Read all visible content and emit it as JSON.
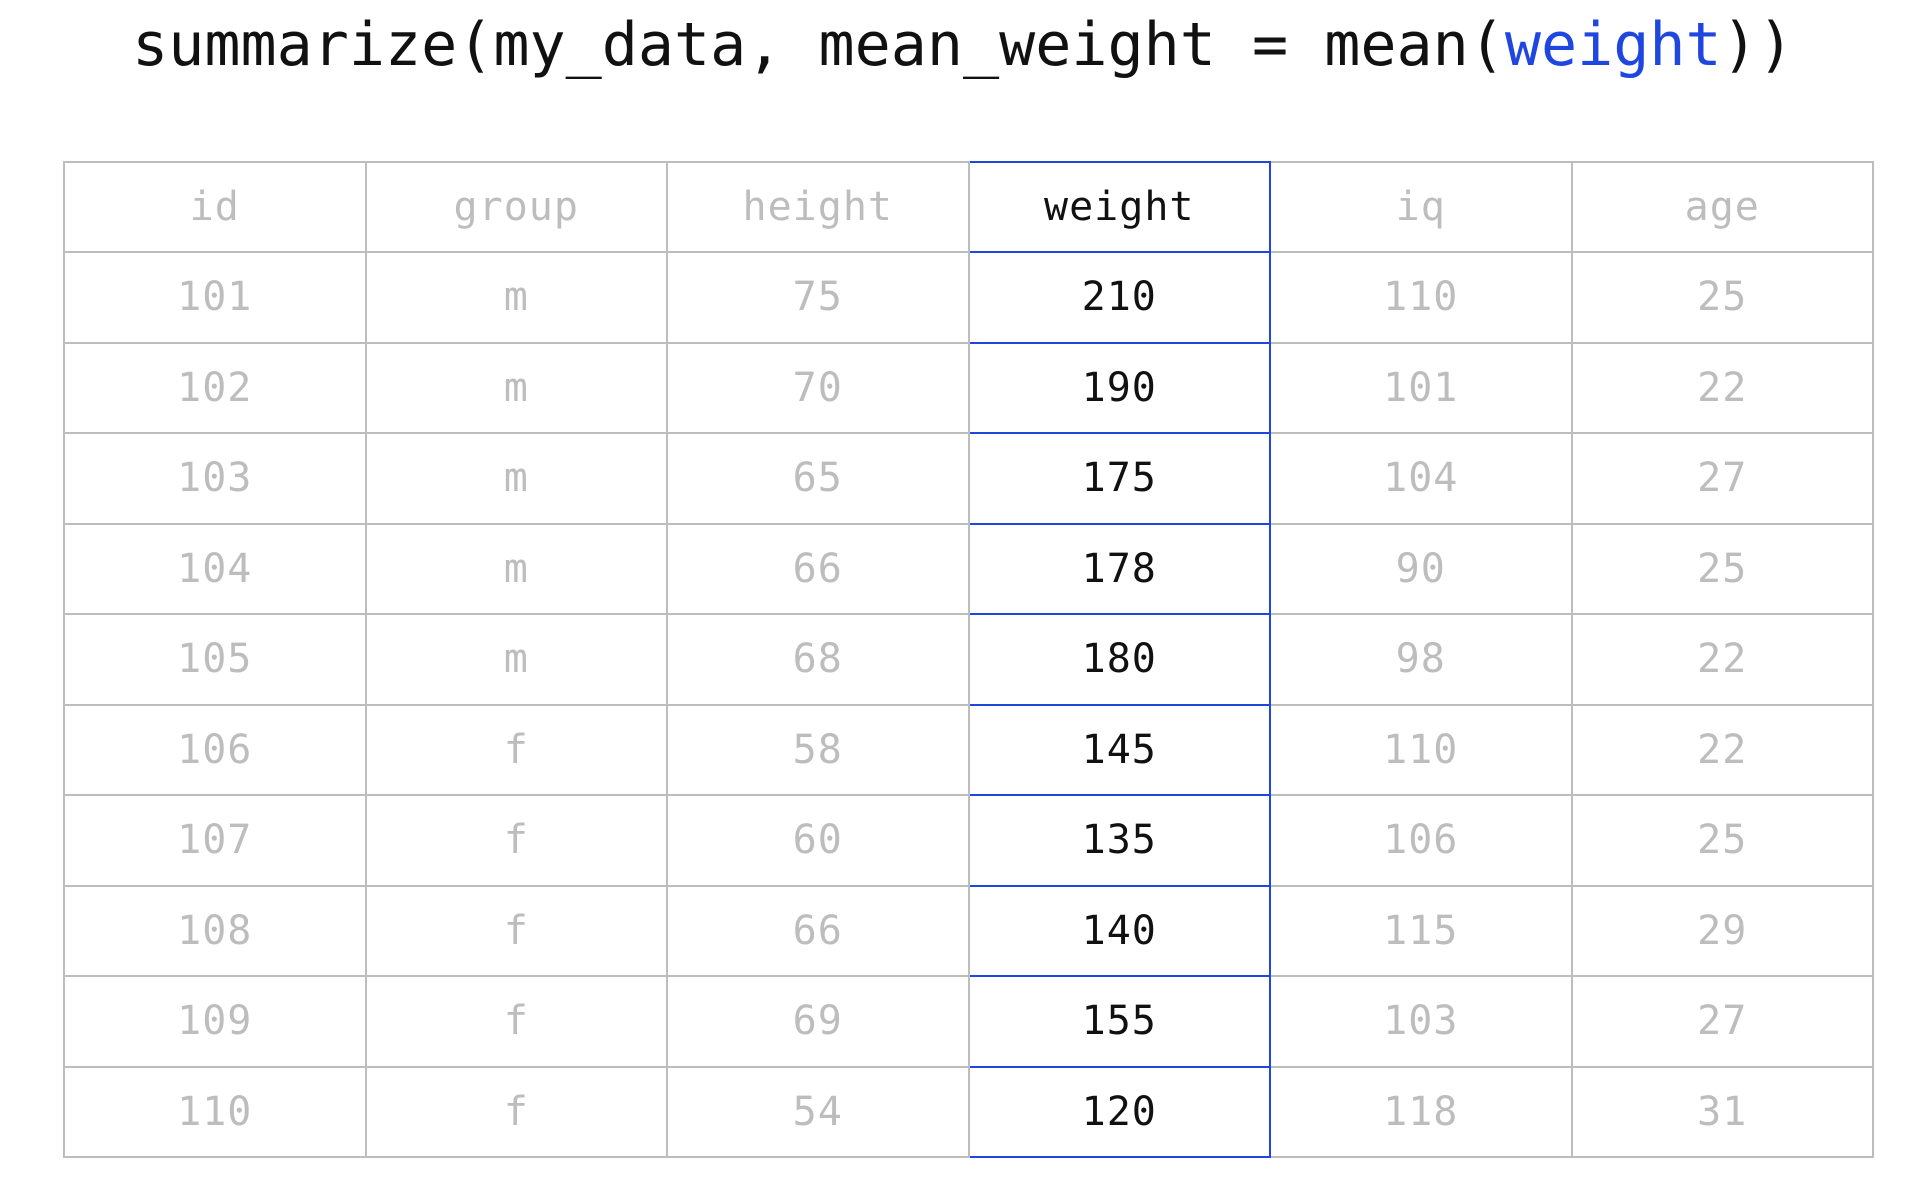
{
  "code": {
    "prefix": "summarize(my_data, mean_weight = mean(",
    "highlight": "weight",
    "suffix": "))"
  },
  "colors": {
    "highlight": "#1f47e0",
    "dim_text": "#bdbdbd",
    "active_text": "#111111"
  },
  "table": {
    "highlighted_column": "weight",
    "columns": [
      "id",
      "group",
      "height",
      "weight",
      "iq",
      "age"
    ],
    "rows": [
      [
        "101",
        "m",
        "75",
        "210",
        "110",
        "25"
      ],
      [
        "102",
        "m",
        "70",
        "190",
        "101",
        "22"
      ],
      [
        "103",
        "m",
        "65",
        "175",
        "104",
        "27"
      ],
      [
        "104",
        "m",
        "66",
        "178",
        "90",
        "25"
      ],
      [
        "105",
        "m",
        "68",
        "180",
        "98",
        "22"
      ],
      [
        "106",
        "f",
        "58",
        "145",
        "110",
        "22"
      ],
      [
        "107",
        "f",
        "60",
        "135",
        "106",
        "25"
      ],
      [
        "108",
        "f",
        "66",
        "140",
        "115",
        "29"
      ],
      [
        "109",
        "f",
        "69",
        "155",
        "103",
        "27"
      ],
      [
        "110",
        "f",
        "54",
        "120",
        "118",
        "31"
      ]
    ]
  }
}
